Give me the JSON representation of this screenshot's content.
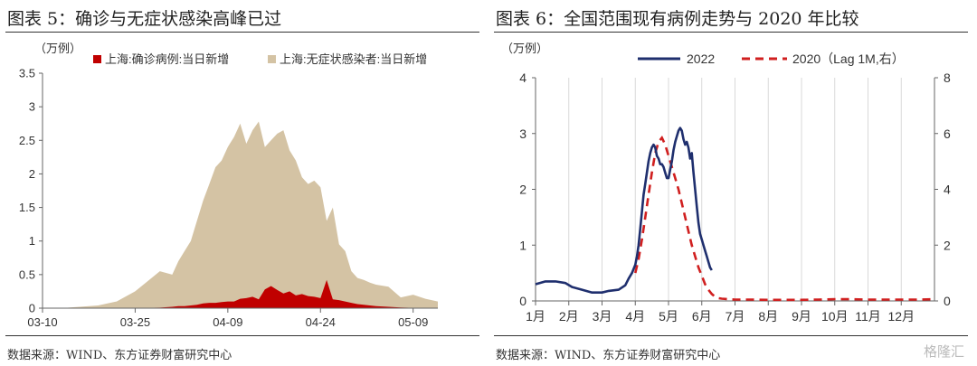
{
  "left": {
    "title": "图表 5：确诊与无症状感染高峰已过",
    "source": "数据来源：WIND、东方证券财富研究中心",
    "chart_data": {
      "type": "area",
      "unit": "（万例）",
      "x_ticks": [
        "03-10",
        "03-25",
        "04-09",
        "04-24",
        "05-09"
      ],
      "ylim": [
        0,
        3.5
      ],
      "yticks": [
        "0",
        "0.5",
        "1",
        "1.5",
        "2",
        "2.5",
        "3",
        "3.5"
      ],
      "legend_position": "top",
      "series": [
        {
          "name": "上海:确诊病例:当日新增",
          "color": "#c00000",
          "x": [
            "03-10",
            "03-13",
            "03-16",
            "03-19",
            "03-22",
            "03-25",
            "03-27",
            "03-29",
            "03-31",
            "04-01",
            "04-02",
            "04-03",
            "04-04",
            "04-05",
            "04-06",
            "04-07",
            "04-08",
            "04-09",
            "04-10",
            "04-11",
            "04-12",
            "04-13",
            "04-14",
            "04-15",
            "04-16",
            "04-17",
            "04-18",
            "04-19",
            "04-20",
            "04-21",
            "04-22",
            "04-23",
            "04-24",
            "04-25",
            "04-26",
            "04-27",
            "04-28",
            "04-29",
            "04-30",
            "05-01",
            "05-02",
            "05-03",
            "05-05",
            "05-07",
            "05-09",
            "05-11",
            "05-13"
          ],
          "values": [
            0,
            0,
            0,
            0,
            0.001,
            0.003,
            0.005,
            0.008,
            0.02,
            0.03,
            0.03,
            0.04,
            0.05,
            0.07,
            0.08,
            0.08,
            0.09,
            0.1,
            0.1,
            0.14,
            0.15,
            0.17,
            0.13,
            0.28,
            0.33,
            0.27,
            0.22,
            0.25,
            0.19,
            0.21,
            0.18,
            0.17,
            0.15,
            0.42,
            0.13,
            0.12,
            0.1,
            0.08,
            0.06,
            0.05,
            0.04,
            0.03,
            0.02,
            0.01,
            0.005,
            0.003,
            0.002
          ]
        },
        {
          "name": "上海:无症状感染者:当日新增",
          "color": "#d4c3a4",
          "x": [
            "03-10",
            "03-13",
            "03-16",
            "03-19",
            "03-22",
            "03-25",
            "03-27",
            "03-29",
            "03-31",
            "04-01",
            "04-02",
            "04-03",
            "04-04",
            "04-05",
            "04-06",
            "04-07",
            "04-08",
            "04-09",
            "04-10",
            "04-11",
            "04-12",
            "04-13",
            "04-14",
            "04-15",
            "04-16",
            "04-17",
            "04-18",
            "04-19",
            "04-20",
            "04-21",
            "04-22",
            "04-23",
            "04-24",
            "04-25",
            "04-26",
            "04-27",
            "04-28",
            "04-29",
            "04-30",
            "05-01",
            "05-02",
            "05-03",
            "05-05",
            "05-07",
            "05-09",
            "05-11",
            "05-13"
          ],
          "values": [
            0,
            0,
            0.02,
            0.04,
            0.1,
            0.25,
            0.4,
            0.55,
            0.5,
            0.7,
            0.85,
            1.0,
            1.3,
            1.6,
            1.85,
            2.1,
            2.2,
            2.4,
            2.55,
            2.75,
            2.45,
            2.65,
            2.78,
            2.4,
            2.5,
            2.6,
            2.65,
            2.35,
            2.2,
            1.95,
            1.85,
            1.9,
            1.8,
            1.3,
            1.5,
            0.95,
            0.85,
            0.55,
            0.45,
            0.42,
            0.38,
            0.35,
            0.32,
            0.16,
            0.2,
            0.14,
            0.1
          ]
        }
      ]
    }
  },
  "right": {
    "title": "图表 6：全国范围现有病例走势与 2020 年比较",
    "source": "数据来源：WIND、东方证券财富研究中心",
    "chart_data": {
      "type": "line",
      "unit": "（万例）",
      "categories": [
        "1月",
        "2月",
        "3月",
        "4月",
        "5月",
        "6月",
        "7月",
        "8月",
        "9月",
        "10月",
        "11月",
        "12月"
      ],
      "ylim_left": [
        0,
        4
      ],
      "ylim_right": [
        0,
        8
      ],
      "yticks_left": [
        "0",
        "1",
        "2",
        "3",
        "4"
      ],
      "yticks_right": [
        "0",
        "2",
        "4",
        "6",
        "8"
      ],
      "legend_position": "top",
      "series": [
        {
          "name": "2022",
          "axis": "left",
          "color": "#1f2f6e",
          "style": "solid",
          "x": [
            0.0,
            0.3,
            0.6,
            0.9,
            1.1,
            1.4,
            1.7,
            2.0,
            2.2,
            2.5,
            2.7,
            2.8,
            2.9,
            3.0,
            3.05,
            3.1,
            3.15,
            3.2,
            3.25,
            3.3,
            3.35,
            3.4,
            3.45,
            3.5,
            3.55,
            3.6,
            3.65,
            3.7,
            3.75,
            3.8,
            3.85,
            3.9,
            3.95,
            4.0,
            4.05,
            4.1,
            4.15,
            4.2,
            4.25,
            4.3,
            4.35,
            4.4,
            4.45,
            4.5,
            4.55,
            4.6,
            4.65,
            4.7,
            4.75,
            4.8,
            4.85,
            4.9,
            4.95,
            5.0,
            5.05,
            5.1,
            5.15,
            5.2,
            5.25,
            5.3
          ],
          "values": [
            0.3,
            0.35,
            0.35,
            0.32,
            0.25,
            0.2,
            0.15,
            0.15,
            0.18,
            0.2,
            0.28,
            0.4,
            0.5,
            0.65,
            0.8,
            1.0,
            1.3,
            1.6,
            1.9,
            2.1,
            2.3,
            2.5,
            2.65,
            2.75,
            2.8,
            2.75,
            2.6,
            2.55,
            2.45,
            2.45,
            2.4,
            2.3,
            2.2,
            2.2,
            2.35,
            2.5,
            2.7,
            2.85,
            2.95,
            3.05,
            3.1,
            3.05,
            2.9,
            2.8,
            2.85,
            2.75,
            2.55,
            2.65,
            2.3,
            2.0,
            1.7,
            1.4,
            1.2,
            1.1,
            1.0,
            0.9,
            0.8,
            0.7,
            0.6,
            0.55
          ]
        },
        {
          "name": "2020（Lag 1M,右）",
          "axis": "right",
          "color": "#d01f1f",
          "style": "dashed",
          "x": [
            3.0,
            3.1,
            3.2,
            3.3,
            3.4,
            3.5,
            3.6,
            3.7,
            3.8,
            3.9,
            4.0,
            4.1,
            4.2,
            4.3,
            4.4,
            4.5,
            4.6,
            4.7,
            4.8,
            4.9,
            5.0,
            5.1,
            5.2,
            5.3,
            5.4,
            5.5,
            5.6,
            5.8,
            6.0,
            6.5,
            7.0,
            7.5,
            8.0,
            8.5,
            9.0,
            9.5,
            10.0,
            10.5,
            11.0,
            11.5,
            12.0
          ],
          "values": [
            1.0,
            1.5,
            2.2,
            3.0,
            3.8,
            4.6,
            5.3,
            5.7,
            5.85,
            5.6,
            5.2,
            4.8,
            4.4,
            4.0,
            3.5,
            3.0,
            2.5,
            2.0,
            1.6,
            1.2,
            0.9,
            0.6,
            0.4,
            0.25,
            0.15,
            0.1,
            0.08,
            0.06,
            0.05,
            0.05,
            0.04,
            0.04,
            0.04,
            0.05,
            0.06,
            0.06,
            0.05,
            0.05,
            0.05,
            0.05,
            0.06
          ]
        }
      ]
    }
  },
  "watermark": "格隆汇"
}
